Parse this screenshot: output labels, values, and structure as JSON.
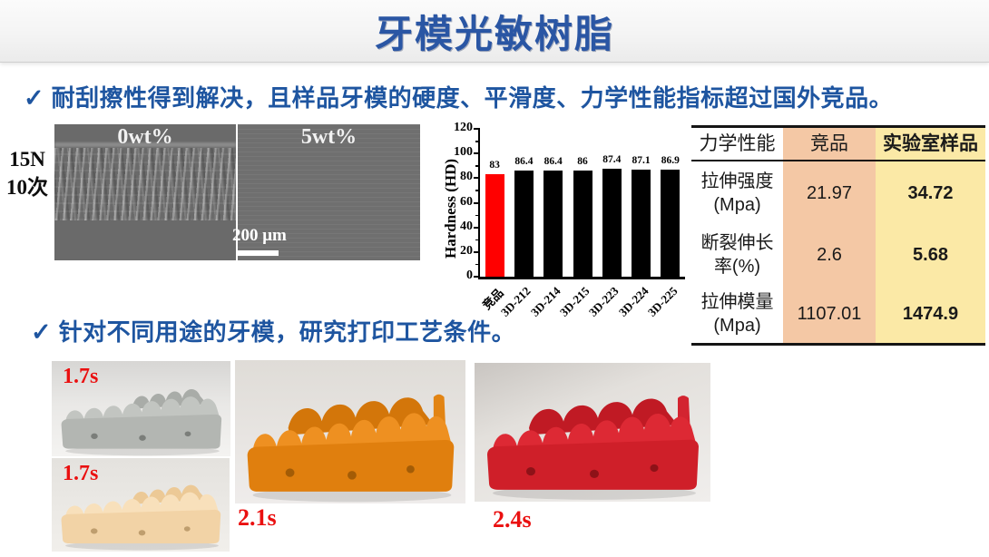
{
  "slide": {
    "title": "牙模光敏树脂",
    "check_icon": "✓",
    "bullet1": "耐刮擦性得到解决，且样品牙模的硬度、平滑度、力学性能指标超过国外竞品。",
    "bullet2": "针对不同用途的牙模，研究打印工艺条件。"
  },
  "colors": {
    "title_blue": "#2a56a4",
    "bullet_blue": "#1e55a0",
    "time_label_red": "#ea1010",
    "competitor_bar_red": "#ff0000",
    "sample_bar_black": "#000000",
    "competitor_col_bg": "#f4c8a5",
    "lab_col_bg": "#fbe9a6"
  },
  "sem": {
    "load_line1": "15N",
    "load_line2": "10次",
    "left_label": "0wt%",
    "right_label": "5wt%",
    "scale_text": "200 μm"
  },
  "chart_data": {
    "type": "bar",
    "categories": [
      "竞品",
      "3D-212",
      "3D-214",
      "3D-215",
      "3D-223",
      "3D-224",
      "3D-225"
    ],
    "values": [
      83,
      86.4,
      86.4,
      86,
      87.4,
      87.1,
      86.9
    ],
    "value_labels": [
      "83",
      "86.4",
      "86.4",
      "86",
      "87.4",
      "87.1",
      "86.9"
    ],
    "bar_colors": [
      "#ff0000",
      "#000000",
      "#000000",
      "#000000",
      "#000000",
      "#000000",
      "#000000"
    ],
    "title": "",
    "xlabel": "",
    "ylabel": "Hardness (HD)",
    "ylim": [
      0,
      120
    ],
    "yticks": [
      0,
      20,
      40,
      60,
      80,
      100,
      120
    ],
    "grid": false,
    "legend": null
  },
  "table": {
    "headers": [
      "力学性能",
      "竞品",
      "实验室样品"
    ],
    "rows": [
      {
        "label_line1": "拉伸强度",
        "label_line2": "(Mpa)",
        "competitor": "21.97",
        "lab": "34.72"
      },
      {
        "label_line1": "断裂伸长",
        "label_line2": "率(%)",
        "competitor": "2.6",
        "lab": "5.68"
      },
      {
        "label_line1": "拉伸模量",
        "label_line2": "(Mpa)",
        "competitor": "1107.01",
        "lab": "1474.9"
      }
    ]
  },
  "photos": {
    "gray": {
      "time": "1.7s"
    },
    "cream": {
      "time": "1.7s"
    },
    "orange": {
      "time": "2.1s"
    },
    "red": {
      "time": "2.4s"
    }
  }
}
